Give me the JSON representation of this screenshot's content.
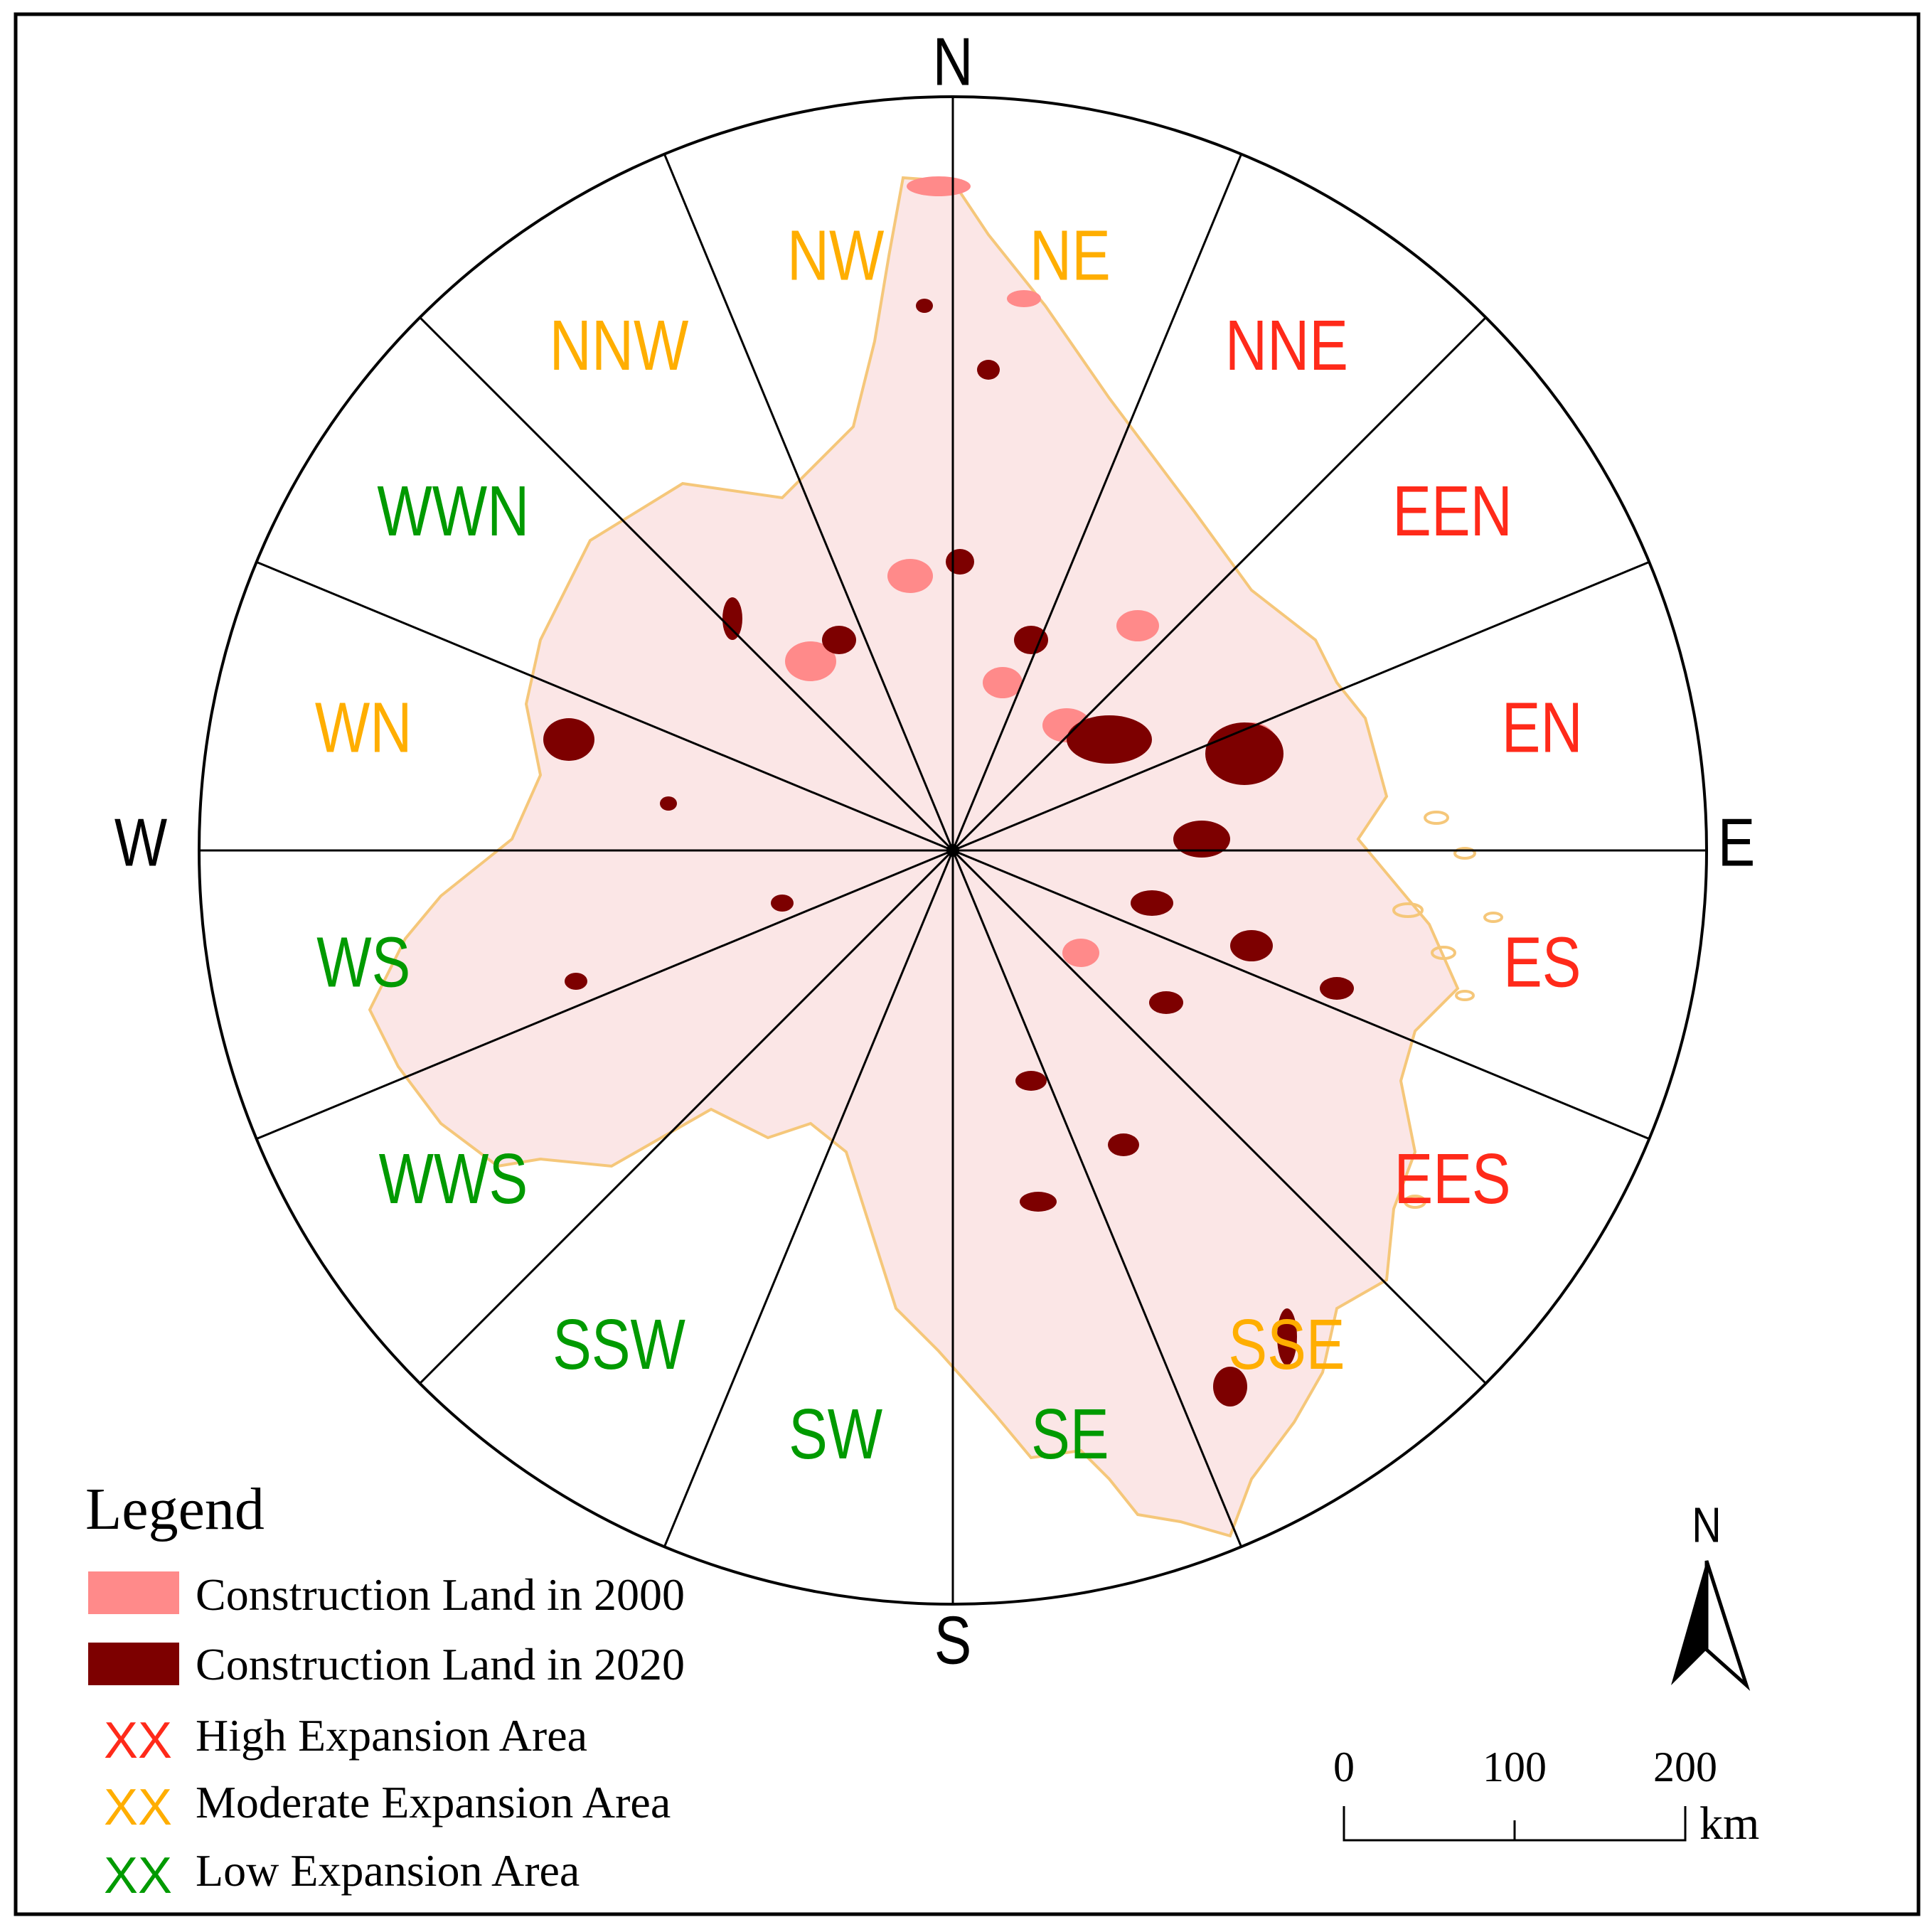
{
  "compass": {
    "north": "N",
    "south": "S",
    "east": "E",
    "west": "W"
  },
  "sectors": [
    {
      "name": "NE",
      "level": "moderate"
    },
    {
      "name": "NNE",
      "level": "high"
    },
    {
      "name": "EEN",
      "level": "high"
    },
    {
      "name": "EN",
      "level": "high"
    },
    {
      "name": "ES",
      "level": "high"
    },
    {
      "name": "EES",
      "level": "high"
    },
    {
      "name": "SSE",
      "level": "moderate"
    },
    {
      "name": "SE",
      "level": "low"
    },
    {
      "name": "SW",
      "level": "low"
    },
    {
      "name": "SSW",
      "level": "low"
    },
    {
      "name": "WWS",
      "level": "low"
    },
    {
      "name": "WS",
      "level": "low"
    },
    {
      "name": "WN",
      "level": "moderate"
    },
    {
      "name": "WWN",
      "level": "low"
    },
    {
      "name": "NNW",
      "level": "moderate"
    },
    {
      "name": "NW",
      "level": "moderate"
    }
  ],
  "colors": {
    "high": "#ff2a1a",
    "moderate": "#ffae00",
    "low": "#009a00",
    "land_2000": "#ff8a8a",
    "land_2020": "#7d0000",
    "boundary": "#f5c77a"
  },
  "legend": {
    "title": "Legend",
    "land_2000": "Construction Land in 2000",
    "land_2020": "Construction Land in 2020",
    "marker_text": "XX",
    "high": "High Expansion Area",
    "moderate": "Moderate Expansion Area",
    "low": "Low Expansion Area"
  },
  "north_arrow": {
    "label": "N"
  },
  "scale_bar": {
    "ticks": [
      "0",
      "100",
      "200"
    ],
    "unit": "km"
  }
}
